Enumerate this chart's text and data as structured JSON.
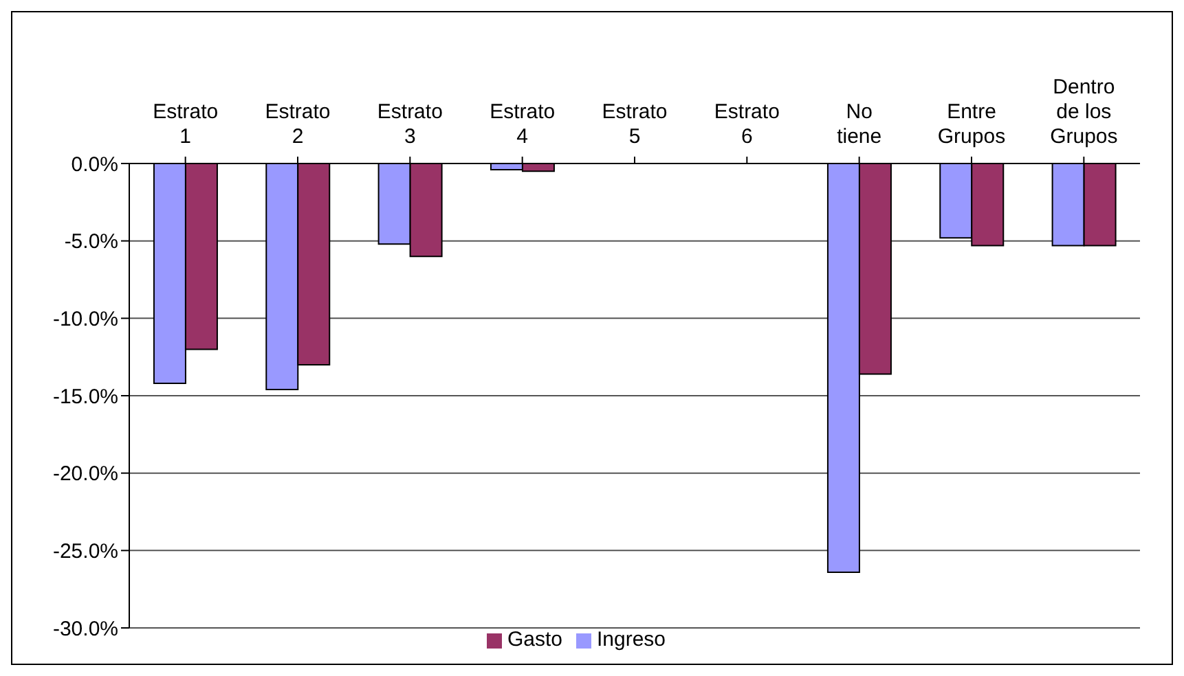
{
  "chart_data": {
    "type": "bar",
    "categories": [
      "Estrato 1",
      "Estrato 2",
      "Estrato 3",
      "Estrato 4",
      "Estrato 5",
      "Estrato 6",
      "No tiene",
      "Entre Grupos",
      "Dentro de los Grupos"
    ],
    "series": [
      {
        "name": "Ingreso",
        "color": "#9999ff",
        "values": [
          -14.2,
          -14.6,
          -5.2,
          -0.4,
          0,
          0,
          -26.4,
          -4.8,
          -5.3
        ]
      },
      {
        "name": "Gasto",
        "color": "#993366",
        "values": [
          -12.0,
          -13.0,
          -6.0,
          -0.5,
          0,
          0,
          -13.6,
          -5.3,
          -5.3
        ]
      }
    ],
    "ylim": [
      -30,
      0
    ],
    "yticks": [
      {
        "value": -30,
        "label": "-30.0%"
      },
      {
        "value": -25,
        "label": "-25.0%"
      },
      {
        "value": -20,
        "label": "-20.0%"
      },
      {
        "value": -15,
        "label": "-15.0%"
      },
      {
        "value": -10,
        "label": "-10.0%"
      },
      {
        "value": -5,
        "label": "-5.0%"
      },
      {
        "value": 0,
        "label": "0.0%"
      }
    ],
    "grid": "y",
    "legend": "bottom"
  }
}
